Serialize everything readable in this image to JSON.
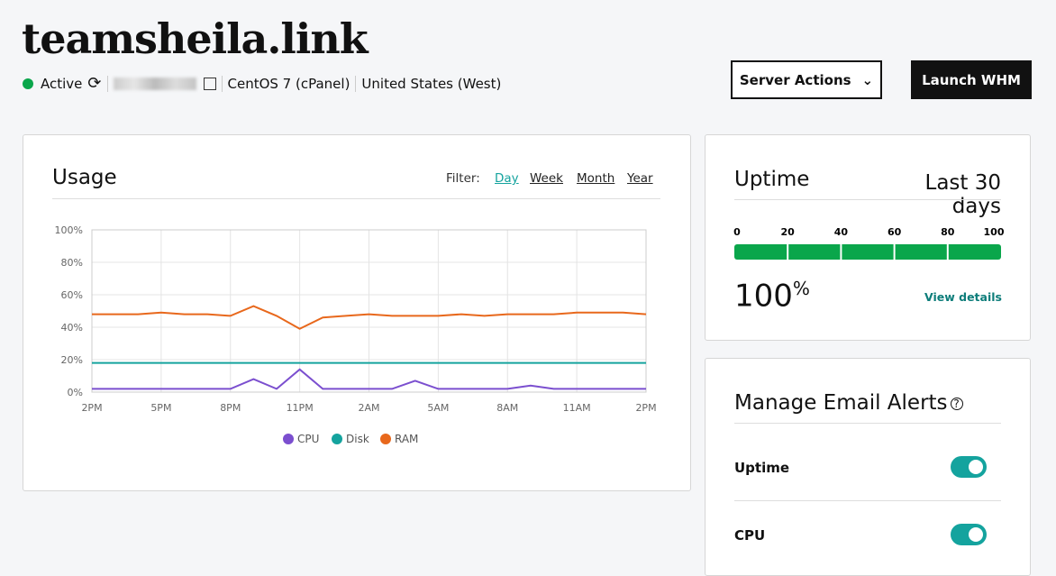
{
  "header": {
    "title": "teamsheila.link",
    "status": "Active",
    "os": "CentOS 7 (cPanel)",
    "region": "United States (West)",
    "buttons": [
      "Server Actions",
      "Launch WHM"
    ]
  },
  "usage": {
    "title": "Usage",
    "filter_label": "Filter:",
    "filters": [
      "Day",
      "Week",
      "Month",
      "Year"
    ],
    "active_filter": 0,
    "chart_data": {
      "type": "line",
      "categories": [
        "2PM",
        null,
        null,
        "5PM",
        null,
        null,
        "8PM",
        null,
        null,
        "11PM",
        null,
        null,
        "2AM",
        null,
        null,
        "5AM",
        null,
        null,
        "8AM",
        null,
        null,
        "11AM",
        null,
        null,
        "2PM"
      ],
      "ylim": [
        0,
        100
      ],
      "yticks": [
        {
          "value": 0,
          "label": "0%"
        },
        {
          "value": 20,
          "label": "20%"
        },
        {
          "value": 40,
          "label": "40%"
        },
        {
          "value": 60,
          "label": "60%"
        },
        {
          "value": 80,
          "label": "80%"
        },
        {
          "value": 100,
          "label": "100%"
        }
      ],
      "grid": true,
      "series": [
        {
          "name": "CPU",
          "color": "#7b4fcf",
          "values": [
            2,
            2,
            2,
            2,
            2,
            2,
            2,
            8,
            2,
            14,
            2,
            2,
            2,
            2,
            7,
            2,
            2,
            2,
            2,
            4,
            2,
            2,
            2,
            2,
            2
          ]
        },
        {
          "name": "Disk",
          "color": "#14a39e",
          "values": [
            18,
            18,
            18,
            18,
            18,
            18,
            18,
            18,
            18,
            18,
            18,
            18,
            18,
            18,
            18,
            18,
            18,
            18,
            18,
            18,
            18,
            18,
            18,
            18,
            18
          ]
        },
        {
          "name": "RAM",
          "color": "#e8681c",
          "values": [
            48,
            48,
            48,
            49,
            48,
            48,
            47,
            53,
            47,
            39,
            46,
            47,
            48,
            47,
            47,
            47,
            48,
            47,
            48,
            48,
            48,
            49,
            49,
            49,
            48
          ]
        }
      ]
    }
  },
  "uptime": {
    "title": "Uptime",
    "period": "Last 30 days",
    "scale": [
      0,
      20,
      40,
      60,
      80,
      100
    ],
    "value": 100,
    "unit": "%",
    "link": "View details",
    "color": "#0aa64b"
  },
  "alerts": {
    "title": "Manage Email Alerts",
    "items": [
      {
        "label": "Uptime",
        "on": true
      },
      {
        "label": "CPU",
        "on": true
      }
    ]
  }
}
